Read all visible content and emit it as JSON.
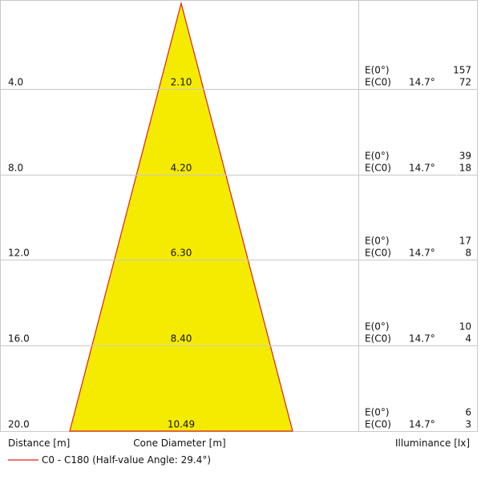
{
  "rows": [
    {
      "distance": "4.0",
      "diameter": "2.10",
      "e0_label": "E(0°)",
      "e0": "157",
      "ec0_label": "E(C0)",
      "angle": "14.7°",
      "ec0": "72"
    },
    {
      "distance": "8.0",
      "diameter": "4.20",
      "e0_label": "E(0°)",
      "e0": "39",
      "ec0_label": "E(C0)",
      "angle": "14.7°",
      "ec0": "18"
    },
    {
      "distance": "12.0",
      "diameter": "6.30",
      "e0_label": "E(0°)",
      "e0": "17",
      "ec0_label": "E(C0)",
      "angle": "14.7°",
      "ec0": "8"
    },
    {
      "distance": "16.0",
      "diameter": "8.40",
      "e0_label": "E(0°)",
      "e0": "10",
      "ec0_label": "E(C0)",
      "angle": "14.7°",
      "ec0": "4"
    },
    {
      "distance": "20.0",
      "diameter": "10.49",
      "e0_label": "E(0°)",
      "e0": "6",
      "ec0_label": "E(C0)",
      "angle": "14.7°",
      "ec0": "3"
    }
  ],
  "footer": {
    "distance_label": "Distance [m]",
    "diameter_label": "Cone Diameter [m]",
    "illuminance_label": "Illuminance [lx]"
  },
  "legend": {
    "label": "C0 - C180 (Half-value Angle: 29.4°)"
  }
}
